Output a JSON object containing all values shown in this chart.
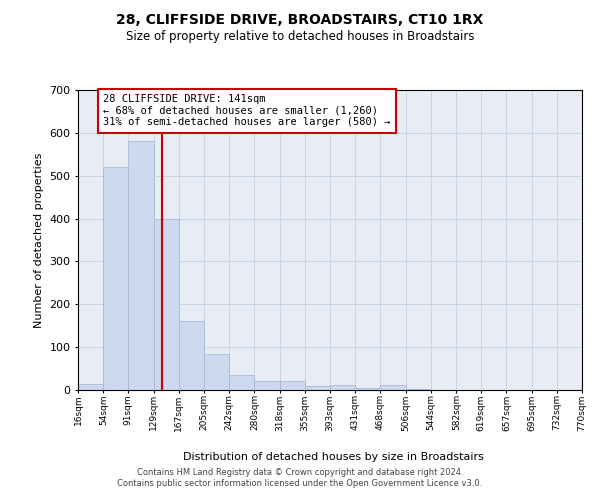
{
  "title": "28, CLIFFSIDE DRIVE, BROADSTAIRS, CT10 1RX",
  "subtitle": "Size of property relative to detached houses in Broadstairs",
  "xlabel": "Distribution of detached houses by size in Broadstairs",
  "ylabel": "Number of detached properties",
  "bin_edges": [
    16,
    54,
    91,
    129,
    167,
    205,
    242,
    280,
    318,
    355,
    393,
    431,
    468,
    506,
    544,
    582,
    619,
    657,
    695,
    732,
    770
  ],
  "bar_heights": [
    15,
    520,
    580,
    400,
    160,
    85,
    35,
    22,
    22,
    10,
    12,
    5,
    12,
    2,
    0,
    0,
    0,
    0,
    0,
    0
  ],
  "bar_color": "#ccd9ee",
  "bar_edge_color": "#9fb4d4",
  "property_line_x": 141,
  "property_line_color": "#cc0000",
  "annotation_text": "28 CLIFFSIDE DRIVE: 141sqm\n← 68% of detached houses are smaller (1,260)\n31% of semi-detached houses are larger (580) →",
  "annotation_box_color": "#ffffff",
  "annotation_box_edge": "#cc0000",
  "grid_color": "#c8d4e8",
  "background_color": "#e8edf5",
  "ylim": [
    0,
    700
  ],
  "yticks": [
    0,
    100,
    200,
    300,
    400,
    500,
    600,
    700
  ],
  "footer_line1": "Contains HM Land Registry data © Crown copyright and database right 2024.",
  "footer_line2": "Contains public sector information licensed under the Open Government Licence v3.0."
}
